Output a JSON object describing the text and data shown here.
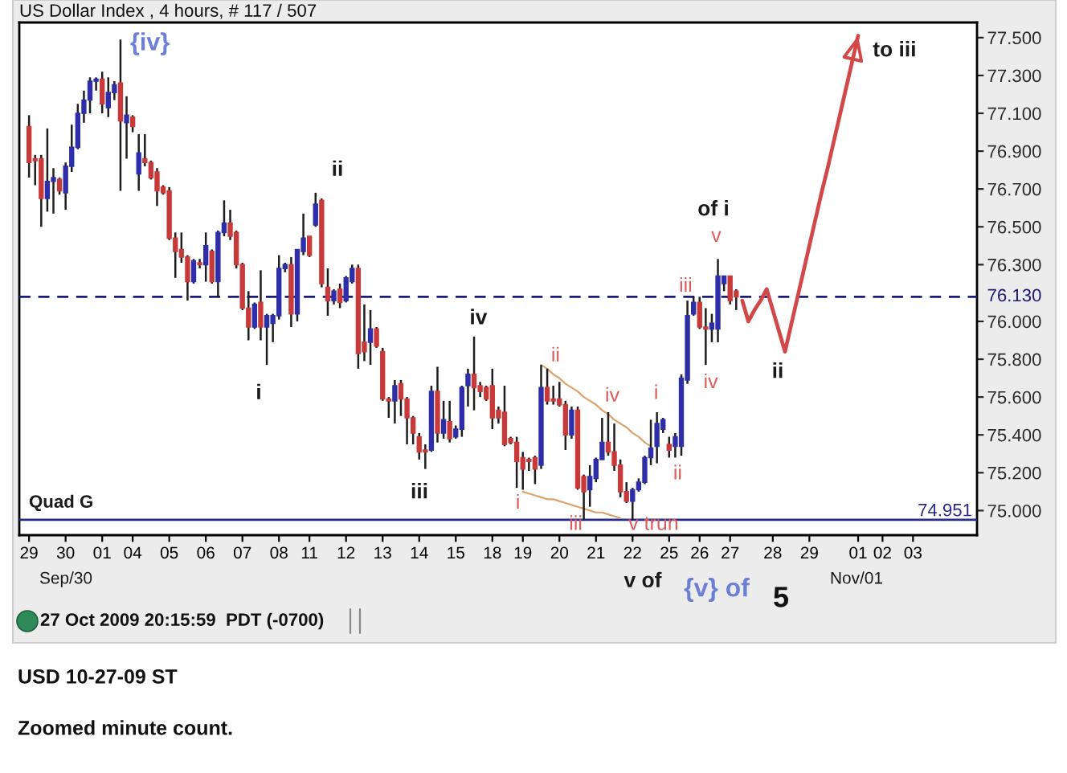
{
  "chart_data": {
    "type": "candlestick",
    "title": "US Dollar Index , 4 hours, # 117 / 507",
    "categories": [
      "29",
      null,
      null,
      null,
      null,
      null,
      "30",
      null,
      null,
      null,
      null,
      null,
      "01",
      null,
      null,
      null,
      null,
      "04",
      null,
      null,
      null,
      null,
      null,
      "05",
      null,
      null,
      null,
      null,
      null,
      "06",
      null,
      null,
      null,
      null,
      null,
      "07",
      null,
      null,
      null,
      null,
      null,
      "08",
      null,
      null,
      null,
      null,
      "11",
      null,
      null,
      null,
      null,
      null,
      "12",
      null,
      null,
      null,
      null,
      null,
      "13",
      null,
      null,
      null,
      null,
      null,
      "14",
      null,
      null,
      null,
      null,
      null,
      "15",
      null,
      null,
      null,
      null,
      null,
      "18",
      null,
      null,
      null,
      null,
      "19",
      null,
      null,
      null,
      null,
      null,
      "20",
      null,
      null,
      null,
      null,
      null,
      "21",
      null,
      null,
      null,
      null,
      null,
      "22",
      null,
      null,
      null,
      null,
      null,
      "25",
      null,
      null,
      null,
      null,
      "26",
      null,
      null,
      null,
      null,
      "27",
      null,
      null,
      null,
      null,
      null,
      null,
      "28",
      null,
      null,
      null,
      null,
      null,
      "29",
      null,
      null,
      null,
      null,
      null,
      null,
      null,
      "01",
      null,
      null,
      null,
      "02",
      null,
      null,
      null,
      null,
      "03",
      null,
      null,
      null,
      null,
      null,
      null,
      null,
      null,
      null,
      null
    ],
    "ohlc": [
      [
        77.03,
        77.09,
        76.76,
        76.84
      ],
      [
        76.86,
        76.88,
        76.72,
        76.85
      ],
      [
        76.86,
        76.88,
        76.5,
        76.65
      ],
      [
        76.65,
        77.02,
        76.58,
        76.74
      ],
      [
        76.74,
        76.81,
        76.57,
        76.76
      ],
      [
        76.75,
        76.76,
        76.67,
        76.69
      ],
      [
        76.68,
        76.84,
        76.59,
        76.82
      ],
      [
        76.82,
        77.04,
        76.79,
        76.92
      ],
      [
        76.92,
        77.15,
        76.91,
        77.1
      ],
      [
        77.1,
        77.22,
        77.05,
        77.17
      ],
      [
        77.17,
        77.29,
        77.1,
        77.27
      ],
      [
        77.27,
        77.29,
        77.22,
        77.28
      ],
      [
        77.28,
        77.32,
        77.1,
        77.15
      ],
      [
        77.13,
        77.29,
        77.08,
        77.21
      ],
      [
        77.21,
        77.27,
        77.17,
        77.25
      ],
      [
        77.26,
        77.49,
        76.69,
        77.06
      ],
      [
        77.05,
        77.19,
        76.86,
        77.09
      ],
      [
        77.08,
        77.09,
        77.0,
        77.03
      ],
      [
        76.78,
        76.99,
        76.69,
        76.89
      ],
      [
        76.86,
        76.99,
        76.82,
        76.84
      ],
      [
        76.84,
        76.85,
        76.75,
        76.76
      ],
      [
        76.79,
        76.81,
        76.61,
        76.69
      ],
      [
        76.71,
        76.72,
        76.67,
        76.68
      ],
      [
        76.69,
        76.71,
        76.43,
        76.44
      ],
      [
        76.44,
        76.47,
        76.23,
        76.37
      ],
      [
        76.38,
        76.47,
        76.31,
        76.34
      ],
      [
        76.34,
        76.35,
        76.11,
        76.21
      ],
      [
        76.21,
        76.33,
        76.2,
        76.32
      ],
      [
        76.31,
        76.33,
        76.28,
        76.3
      ],
      [
        76.3,
        76.47,
        76.21,
        76.4
      ],
      [
        76.37,
        76.38,
        76.2,
        76.21
      ],
      [
        76.21,
        76.48,
        76.13,
        76.47
      ],
      [
        76.47,
        76.64,
        76.45,
        76.52
      ],
      [
        76.52,
        76.59,
        76.43,
        76.45
      ],
      [
        76.47,
        76.48,
        76.28,
        76.3
      ],
      [
        76.3,
        76.31,
        76.06,
        76.07
      ],
      [
        76.07,
        76.16,
        75.9,
        75.97
      ],
      [
        75.97,
        76.1,
        75.96,
        76.09
      ],
      [
        76.1,
        76.27,
        75.9,
        75.97
      ],
      [
        75.97,
        76.04,
        75.77,
        76.03
      ],
      [
        75.99,
        76.04,
        75.89,
        76.03
      ],
      [
        76.03,
        76.35,
        76.01,
        76.28
      ],
      [
        76.28,
        76.31,
        76.26,
        76.3
      ],
      [
        76.3,
        76.34,
        75.97,
        76.04
      ],
      [
        76.04,
        76.38,
        76.0,
        76.38
      ],
      [
        76.37,
        76.57,
        76.35,
        76.44
      ],
      [
        76.45,
        76.45,
        76.34,
        76.35
      ],
      [
        76.51,
        76.68,
        76.5,
        76.62
      ],
      [
        76.64,
        76.65,
        76.18,
        76.2
      ],
      [
        76.18,
        76.28,
        76.03,
        76.11
      ],
      [
        76.11,
        76.17,
        76.09,
        76.16
      ],
      [
        76.17,
        76.2,
        76.07,
        76.1
      ],
      [
        76.11,
        76.24,
        76.1,
        76.23
      ],
      [
        76.21,
        76.3,
        76.2,
        76.28
      ],
      [
        76.28,
        76.3,
        75.75,
        75.83
      ],
      [
        75.89,
        76.09,
        75.79,
        75.84
      ],
      [
        75.89,
        76.06,
        75.77,
        75.96
      ],
      [
        75.96,
        75.97,
        75.86,
        75.87
      ],
      [
        75.84,
        75.86,
        75.58,
        75.59
      ],
      [
        75.59,
        75.6,
        75.49,
        75.58
      ],
      [
        75.58,
        75.69,
        75.46,
        75.66
      ],
      [
        75.67,
        75.69,
        75.5,
        75.59
      ],
      [
        75.59,
        75.6,
        75.35,
        75.49
      ],
      [
        75.49,
        75.5,
        75.35,
        75.41
      ],
      [
        75.39,
        75.41,
        75.27,
        75.31
      ],
      [
        75.32,
        75.35,
        75.22,
        75.31
      ],
      [
        75.32,
        75.66,
        75.31,
        75.63
      ],
      [
        75.63,
        75.76,
        75.36,
        75.41
      ],
      [
        75.41,
        75.58,
        75.38,
        75.48
      ],
      [
        75.47,
        75.58,
        75.36,
        75.38
      ],
      [
        75.39,
        75.45,
        75.38,
        75.43
      ],
      [
        75.43,
        75.66,
        75.39,
        75.65
      ],
      [
        75.66,
        75.75,
        75.55,
        75.72
      ],
      [
        75.72,
        75.92,
        75.53,
        75.65
      ],
      [
        75.66,
        75.68,
        75.6,
        75.63
      ],
      [
        75.65,
        75.66,
        75.58,
        75.59
      ],
      [
        75.66,
        75.75,
        75.43,
        75.49
      ],
      [
        75.53,
        75.55,
        75.46,
        75.49
      ],
      [
        75.52,
        75.66,
        75.34,
        75.35
      ],
      [
        75.38,
        75.39,
        75.35,
        75.36
      ],
      [
        75.36,
        75.39,
        75.12,
        75.26
      ],
      [
        75.28,
        75.31,
        75.11,
        75.22
      ],
      [
        75.27,
        75.28,
        75.21,
        75.26
      ],
      [
        75.28,
        75.29,
        75.14,
        75.22
      ],
      [
        75.24,
        75.77,
        75.22,
        75.65
      ],
      [
        75.65,
        75.75,
        75.56,
        75.58
      ],
      [
        75.59,
        75.66,
        75.56,
        75.58
      ],
      [
        75.59,
        75.68,
        75.55,
        75.56
      ],
      [
        75.56,
        75.58,
        75.32,
        75.4
      ],
      [
        75.4,
        75.55,
        75.38,
        75.53
      ],
      [
        75.53,
        75.55,
        75.11,
        75.12
      ],
      [
        75.18,
        75.19,
        74.95,
        75.1
      ],
      [
        75.11,
        75.24,
        75.02,
        75.18
      ],
      [
        75.17,
        75.28,
        75.15,
        75.27
      ],
      [
        75.27,
        75.49,
        75.27,
        75.36
      ],
      [
        75.36,
        75.52,
        75.29,
        75.31
      ],
      [
        75.31,
        75.46,
        75.21,
        75.24
      ],
      [
        75.24,
        75.27,
        75.07,
        75.1
      ],
      [
        75.1,
        75.15,
        75.04,
        75.05
      ],
      [
        75.05,
        75.12,
        74.95,
        75.11
      ],
      [
        75.11,
        75.17,
        75.1,
        75.15
      ],
      [
        75.15,
        75.29,
        75.14,
        75.28
      ],
      [
        75.28,
        75.48,
        75.24,
        75.33
      ],
      [
        75.34,
        75.52,
        75.25,
        75.46
      ],
      [
        75.43,
        75.49,
        75.41,
        75.48
      ],
      [
        75.35,
        75.39,
        75.28,
        75.32
      ],
      [
        75.34,
        75.41,
        75.28,
        75.39
      ],
      [
        75.34,
        75.72,
        75.29,
        75.7
      ],
      [
        75.69,
        76.11,
        75.67,
        76.03
      ],
      [
        76.04,
        76.13,
        76.03,
        76.1
      ],
      [
        76.1,
        76.13,
        75.96,
        75.97
      ],
      [
        75.97,
        76.07,
        75.77,
        75.96
      ],
      [
        75.96,
        76.04,
        75.89,
        75.99
      ],
      [
        75.96,
        76.33,
        75.89,
        76.24
      ],
      [
        76.2,
        76.24,
        76.16,
        76.24
      ],
      [
        76.24,
        76.24,
        76.09,
        76.11
      ],
      [
        76.16,
        76.17,
        76.06,
        76.13
      ],
      null,
      null,
      null,
      null,
      null,
      null,
      null,
      null,
      null,
      null,
      null,
      null,
      null,
      null,
      null,
      null,
      null,
      null,
      null,
      null,
      null,
      null,
      null,
      null,
      null,
      null,
      null,
      null,
      null,
      null,
      null,
      null,
      null,
      null,
      null,
      null,
      null,
      null,
      null
    ],
    "colors": [
      "#c83a3a",
      "#c83a3a",
      "#c83a3a",
      "#2e2ea8",
      "#2e2ea8",
      "#c83a3a",
      "#2e2ea8",
      "#2e2ea8",
      "#2e2ea8",
      "#2e2ea8",
      "#2e2ea8",
      "#2e2ea8",
      "#c83a3a",
      "#2e2ea8",
      "#2e2ea8",
      "#c83a3a",
      "#2e2ea8",
      "#c83a3a",
      "#2e2ea8",
      "#c83a3a",
      "#c83a3a",
      "#c83a3a",
      "#c83a3a",
      "#c83a3a",
      "#c83a3a",
      "#c83a3a",
      "#c83a3a",
      "#2e2ea8",
      "#c83a3a",
      "#2e2ea8",
      "#c83a3a",
      "#2e2ea8",
      "#2e2ea8",
      "#c83a3a",
      "#c83a3a",
      "#c83a3a",
      "#c83a3a",
      "#2e2ea8",
      "#c83a3a",
      "#2e2ea8",
      "#2e2ea8",
      "#2e2ea8",
      "#2e2ea8",
      "#c83a3a",
      "#2e2ea8",
      "#2e2ea8",
      "#c83a3a",
      "#2e2ea8",
      "#c83a3a",
      "#c83a3a",
      "#2e2ea8",
      "#c83a3a",
      "#2e2ea8",
      "#2e2ea8",
      "#c83a3a",
      "#c83a3a",
      "#2e2ea8",
      "#c83a3a",
      "#c83a3a",
      "#c83a3a",
      "#2e2ea8",
      "#c83a3a",
      "#c83a3a",
      "#c83a3a",
      "#c83a3a",
      "#c83a3a",
      "#2e2ea8",
      "#c83a3a",
      "#2e2ea8",
      "#c83a3a",
      "#2e2ea8",
      "#2e2ea8",
      "#2e2ea8",
      "#c83a3a",
      "#c83a3a",
      "#c83a3a",
      "#c83a3a",
      "#c83a3a",
      "#c83a3a",
      "#c83a3a",
      "#c83a3a",
      "#c83a3a",
      "#c83a3a",
      "#c83a3a",
      "#2e2ea8",
      "#c83a3a",
      "#c83a3a",
      "#c83a3a",
      "#c83a3a",
      "#2e2ea8",
      "#c83a3a",
      "#c83a3a",
      "#2e2ea8",
      "#2e2ea8",
      "#2e2ea8",
      "#c83a3a",
      "#c83a3a",
      "#c83a3a",
      "#c83a3a",
      "#2e2ea8",
      "#2e2ea8",
      "#2e2ea8",
      "#2e2ea8",
      "#2e2ea8",
      "#2e2ea8",
      "#c83a3a",
      "#2e2ea8",
      "#2e2ea8",
      "#2e2ea8",
      "#2e2ea8",
      "#c83a3a",
      "#c83a3a",
      "#2e2ea8",
      "#2e2ea8",
      "#2e2ea8",
      "#c83a3a",
      "#c83a3a",
      null,
      null,
      null,
      null,
      null,
      null,
      null,
      null,
      null,
      null,
      null,
      null,
      null,
      null,
      null,
      null,
      null,
      null,
      null,
      null,
      null,
      null,
      null,
      null,
      null,
      null,
      null,
      null,
      null,
      null,
      null,
      null,
      null,
      null,
      null,
      null,
      null,
      null,
      null
    ],
    "series": [
      {
        "type": "line",
        "color": "#d24848",
        "values": [
          null,
          null,
          null,
          null,
          null,
          null,
          null,
          null,
          null,
          null,
          null,
          null,
          null,
          null,
          null,
          null,
          null,
          null,
          null,
          null,
          null,
          null,
          null,
          null,
          null,
          null,
          null,
          null,
          null,
          null,
          null,
          null,
          null,
          null,
          null,
          null,
          null,
          null,
          null,
          null,
          null,
          null,
          null,
          null,
          null,
          null,
          null,
          null,
          null,
          null,
          null,
          null,
          null,
          null,
          null,
          null,
          null,
          null,
          null,
          null,
          null,
          null,
          null,
          null,
          null,
          null,
          null,
          null,
          null,
          null,
          null,
          null,
          null,
          null,
          null,
          null,
          null,
          null,
          null,
          null,
          null,
          null,
          null,
          null,
          null,
          null,
          null,
          null,
          null,
          null,
          null,
          null,
          null,
          null,
          null,
          null,
          null,
          null,
          null,
          null,
          null,
          null,
          null,
          null,
          null,
          null,
          null,
          null,
          null,
          null,
          null,
          null,
          null,
          null,
          null,
          null,
          null,
          76.11,
          76.0,
          76.06,
          76.11,
          76.17,
          76.06,
          75.95,
          75.84,
          75.98,
          76.12,
          76.26,
          76.4,
          76.54,
          76.68,
          76.81,
          76.95,
          77.09,
          77.23,
          77.37,
          77.51,
          null,
          null,
          null,
          null,
          null,
          null,
          null,
          null,
          null,
          null,
          null,
          null,
          null,
          null,
          null,
          null,
          null,
          null,
          null
        ]
      },
      {
        "type": "line",
        "color": "#dba36b",
        "values": [
          null,
          null,
          null,
          null,
          null,
          null,
          null,
          null,
          null,
          null,
          null,
          null,
          null,
          null,
          null,
          null,
          null,
          null,
          null,
          null,
          null,
          null,
          null,
          null,
          null,
          null,
          null,
          null,
          null,
          null,
          null,
          null,
          null,
          null,
          null,
          null,
          null,
          null,
          null,
          null,
          null,
          null,
          null,
          null,
          null,
          null,
          null,
          null,
          null,
          null,
          null,
          null,
          null,
          null,
          null,
          null,
          null,
          null,
          null,
          null,
          null,
          null,
          null,
          null,
          null,
          null,
          null,
          null,
          null,
          null,
          null,
          null,
          null,
          null,
          null,
          null,
          null,
          null,
          null,
          null,
          null,
          null,
          null,
          null,
          75.77,
          75.75,
          75.72,
          75.7,
          75.67,
          75.65,
          75.63,
          75.6,
          75.58,
          75.56,
          75.53,
          75.51,
          75.48,
          75.46,
          75.44,
          75.41,
          75.39,
          75.36,
          75.34,
          null,
          null,
          null,
          null,
          null,
          null,
          null,
          null,
          null,
          null,
          null,
          null,
          null,
          null,
          null,
          null,
          null,
          null,
          null,
          null,
          null,
          null,
          null,
          null,
          null,
          null,
          null,
          null,
          null,
          null,
          null,
          null,
          null,
          null,
          null,
          null,
          null,
          null,
          null,
          null,
          null,
          null,
          null,
          null,
          null,
          null,
          null,
          null,
          null,
          null,
          null,
          null,
          null
        ]
      },
      {
        "type": "line",
        "color": "#dba36b",
        "values": [
          null,
          null,
          null,
          null,
          null,
          null,
          null,
          null,
          null,
          null,
          null,
          null,
          null,
          null,
          null,
          null,
          null,
          null,
          null,
          null,
          null,
          null,
          null,
          null,
          null,
          null,
          null,
          null,
          null,
          null,
          null,
          null,
          null,
          null,
          null,
          null,
          null,
          null,
          null,
          null,
          null,
          null,
          null,
          null,
          null,
          null,
          null,
          null,
          null,
          null,
          null,
          null,
          null,
          null,
          null,
          null,
          null,
          null,
          null,
          null,
          null,
          null,
          null,
          null,
          null,
          null,
          null,
          null,
          null,
          null,
          null,
          null,
          null,
          null,
          null,
          null,
          null,
          null,
          null,
          null,
          null,
          75.1,
          75.09,
          75.08,
          75.07,
          75.06,
          75.06,
          75.05,
          75.04,
          75.03,
          75.02,
          75.01,
          75.0,
          74.99,
          74.99,
          74.98,
          74.97,
          74.96,
          null,
          null,
          null,
          null,
          null,
          null,
          null,
          null,
          null,
          null,
          null,
          null,
          null,
          null,
          null,
          null,
          null,
          null,
          null,
          null,
          null,
          null,
          null,
          null,
          null,
          null,
          null,
          null,
          null,
          null,
          null,
          null,
          null,
          null,
          null,
          null,
          null,
          null,
          null,
          null,
          null,
          null,
          null,
          null,
          null,
          null,
          null,
          null,
          null,
          null,
          null,
          null,
          null,
          null,
          null,
          null,
          null,
          null
        ]
      }
    ],
    "ylim": [
      74.87,
      77.58
    ],
    "yticks": [
      {
        "value": 77.5,
        "label": "77.500"
      },
      {
        "value": 77.3,
        "label": "77.300"
      },
      {
        "value": 77.1,
        "label": "77.100"
      },
      {
        "value": 76.9,
        "label": "76.900"
      },
      {
        "value": 76.7,
        "label": "76.700"
      },
      {
        "value": 76.5,
        "label": "76.500"
      },
      {
        "value": 76.3,
        "label": "76.300"
      },
      {
        "value": 76.0,
        "label": "76.000"
      },
      {
        "value": 75.8,
        "label": "75.800"
      },
      {
        "value": 75.6,
        "label": "75.600"
      },
      {
        "value": 75.4,
        "label": "75.400"
      },
      {
        "value": 75.2,
        "label": "75.200"
      },
      {
        "value": 75.0,
        "label": "75.000"
      }
    ],
    "ref_lines": [
      {
        "axis": "y",
        "value": 76.13,
        "label": "76.130",
        "color": "#1c1c78",
        "line_style": "dashed"
      },
      {
        "axis": "y",
        "value": 74.951,
        "label": "74.951",
        "color": "#2a2a8c",
        "line_style": "solid"
      }
    ],
    "annotations": [
      "{iv}",
      "ii",
      "i",
      "iii",
      "iv",
      "i",
      "ii",
      "iii",
      "iv",
      "v trun",
      "i",
      "ii",
      "iii",
      "iv",
      "v",
      "of i",
      "ii",
      "to iii",
      "Quad G",
      "v of",
      "{v} of",
      "5",
      "27 Oct 2009 20:15:59  PDT (-0700)",
      "USD 10-27-09 ST",
      "Zoomed minute count.",
      "Sep/30",
      "Nov/01"
    ]
  }
}
